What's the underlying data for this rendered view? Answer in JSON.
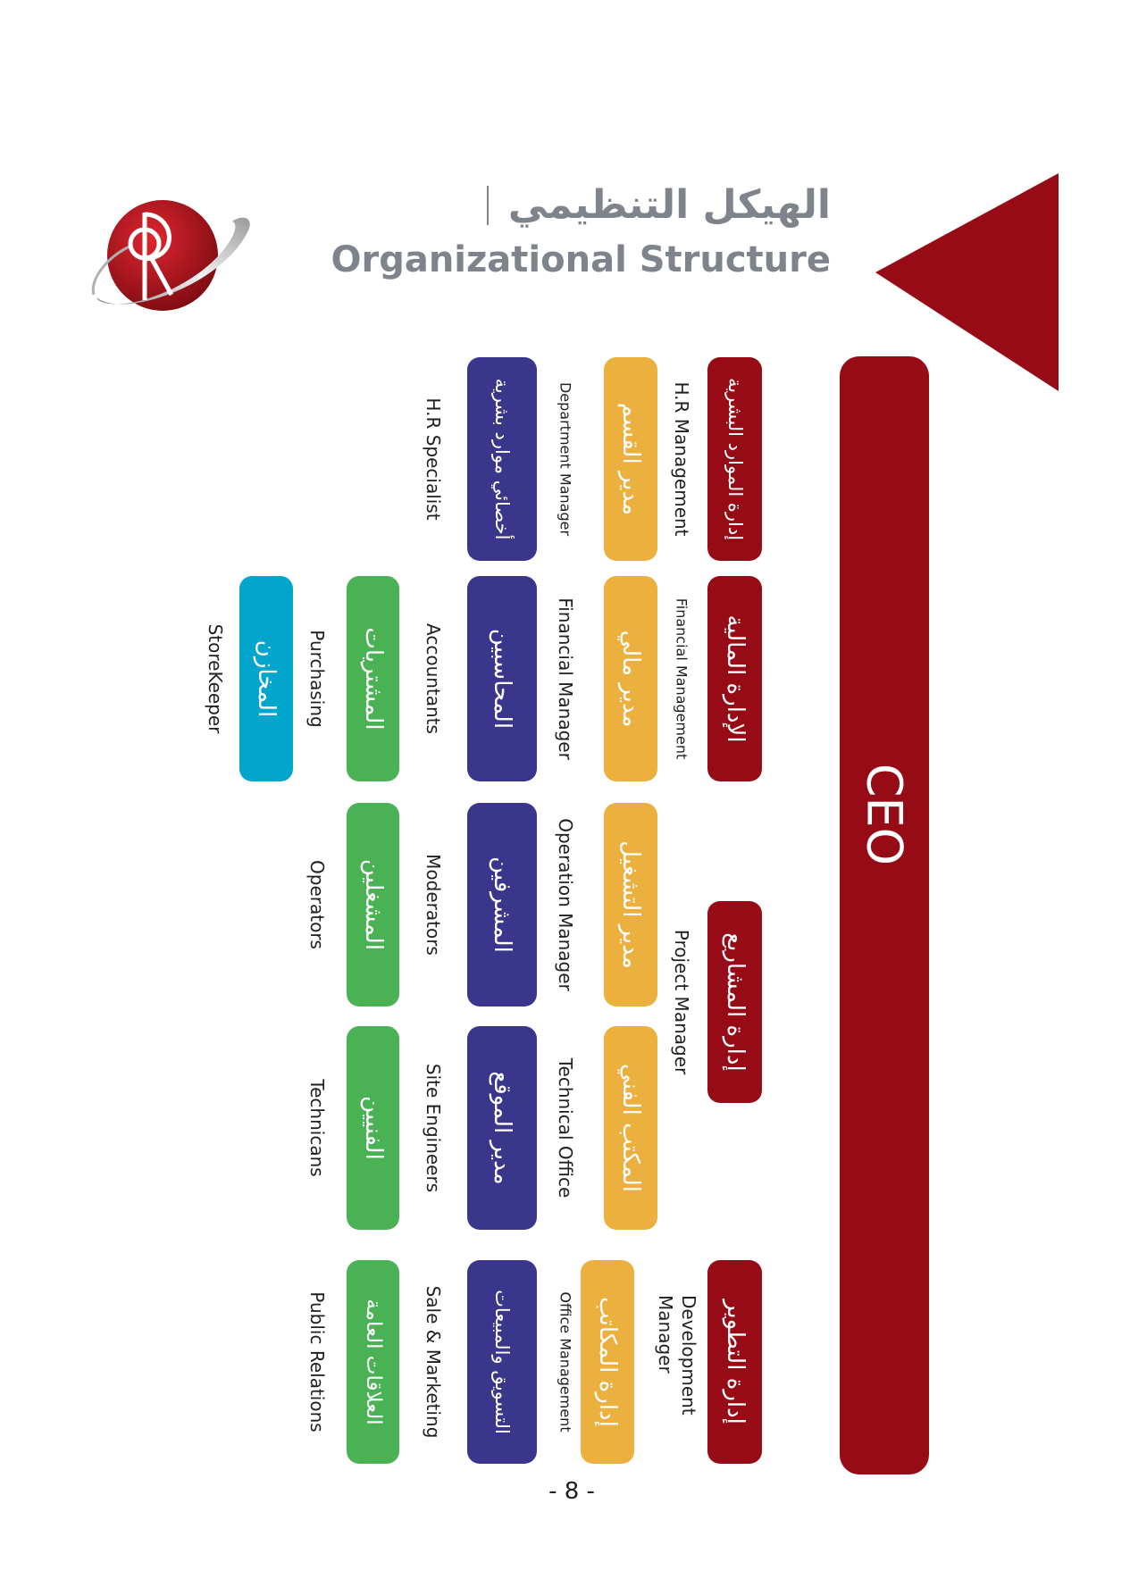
{
  "header": {
    "title_ar": "الهيكل التنظيمي",
    "title_en": "Organizational Structure"
  },
  "logo": {
    "text": "R"
  },
  "ceo": {
    "label": "CEO"
  },
  "colors": {
    "brand_red": "#960b16",
    "manager_yellow": "#ebb03e",
    "staff_blue": "#3a368b",
    "staff_green": "#4bb155",
    "storekeeper_cyan": "#02a6cc",
    "title_gray": "#7f838c"
  },
  "hr": {
    "dept_ar": "إدارة الموارد البشرية",
    "dept_en": "H.R Management",
    "manager_ar": "مدير القسم",
    "manager_en": "Department Manager",
    "staff_ar": "أخصائي موارد بشرية",
    "staff_en": "H.R Specialist"
  },
  "finance": {
    "dept_ar": "الإدارة المالية",
    "dept_en": "Financial Management",
    "manager_ar": "مدير مالي",
    "manager_en": "Financial Manager",
    "staff1_ar": "المحاسبين",
    "staff1_en": "Accountants",
    "staff2_ar": "المشتريات",
    "staff2_en": "Purchasing",
    "staff3_ar": "المخازن",
    "staff3_en": "StoreKeeper"
  },
  "projects": {
    "dept_ar": "إدارة المشاريع",
    "dept_en": "Project Manager",
    "ops": {
      "manager_ar": "مدير التشغيل",
      "manager_en": "Operation Manager",
      "staff1_ar": "المشرفين",
      "staff1_en": "Moderators",
      "staff2_ar": "المشغلين",
      "staff2_en": "Operators"
    },
    "tech": {
      "manager_ar": "المكتب الفني",
      "manager_en": "Technical Office",
      "staff1_ar": "مدير الموقع",
      "staff1_en": "Site Engineers",
      "staff2_ar": "الفنيين",
      "staff2_en": "Technicans"
    }
  },
  "development": {
    "dept_ar": "إدارة التطوير",
    "dept_en": "Development Manager",
    "manager_ar": "إدارة المكاتب",
    "manager_en": "Office Management",
    "staff1_ar": "التسويق والمبيعات",
    "staff1_en": "Sale & Marketing",
    "staff2_ar": "العلاقات العامة",
    "staff2_en": "Public Relations"
  },
  "page_number": "- 8 -"
}
